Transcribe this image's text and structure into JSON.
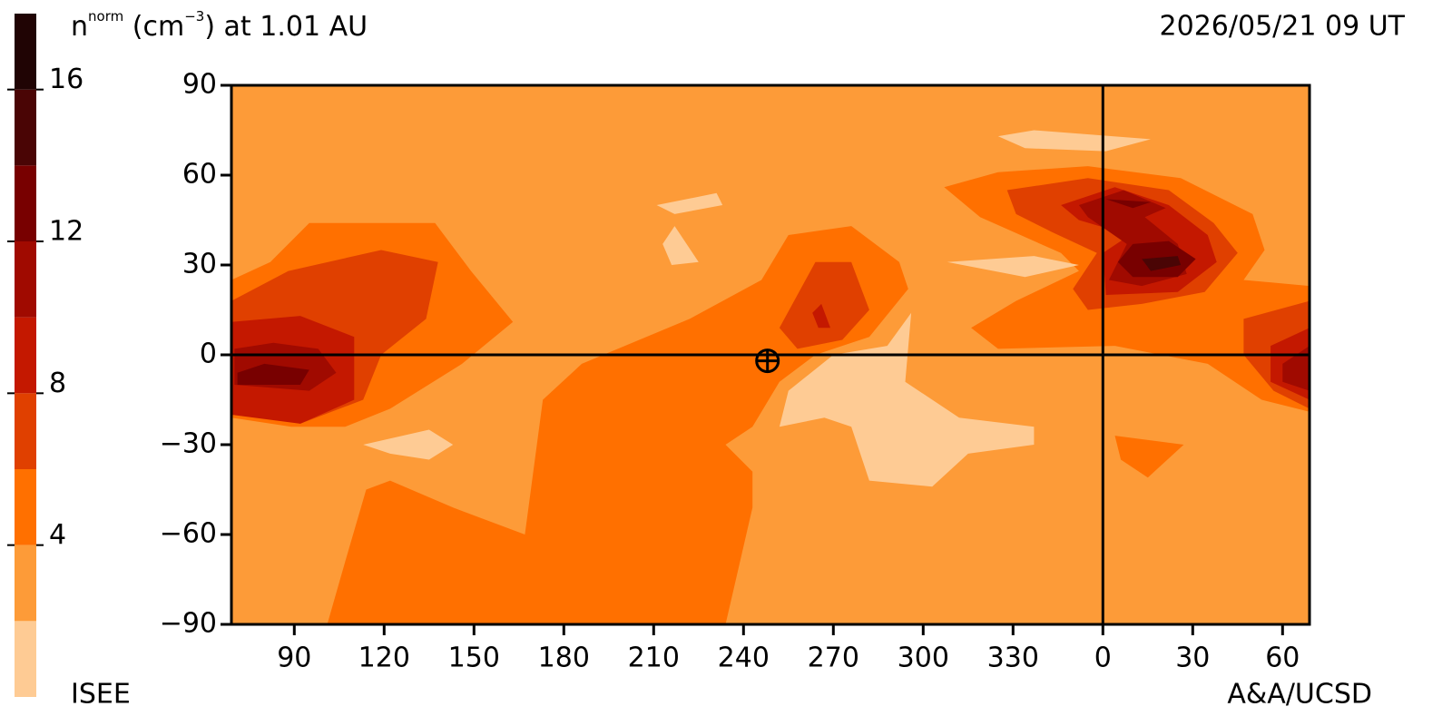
{
  "chart_data": {
    "type": "contour",
    "title_parts": [
      "n",
      "norm",
      " (cm",
      "−3",
      ") at 1.01 AU"
    ],
    "date": "2026/05/21 09 UT",
    "credit_left": "ISEE",
    "credit_right": "A&A/UCSD",
    "xlim": [
      69,
      429
    ],
    "ylim": [
      -90,
      90
    ],
    "xticks": [
      90,
      120,
      150,
      180,
      210,
      240,
      270,
      300,
      330,
      {
        "value": 360,
        "label": "0"
      },
      {
        "value": 390,
        "label": "30"
      },
      {
        "value": 420,
        "label": "60"
      }
    ],
    "yticks": [
      {
        "value": -90,
        "label": "−90"
      },
      {
        "value": -60,
        "label": "−60"
      },
      {
        "value": -30,
        "label": "−30"
      },
      0,
      30,
      60,
      90
    ],
    "ref_lines": {
      "x": 360,
      "y": 0
    },
    "marker": {
      "lon": 248,
      "lat": -2
    },
    "background_level": 2,
    "colorbar": {
      "lim": [
        0,
        18
      ],
      "ticks": [
        4,
        8,
        12,
        16
      ],
      "levels": [
        0,
        2,
        4,
        6,
        8,
        10,
        12,
        14,
        16
      ],
      "colors": [
        "#fecb94",
        "#fd9b38",
        "#ff7000",
        "#e04000",
        "#c41800",
        "#a00a00",
        "#780000",
        "#4a0505",
        "#200404"
      ]
    },
    "regions": [
      {
        "level": 4,
        "points": [
          [
            69,
            25
          ],
          [
            82,
            31
          ],
          [
            95,
            44
          ],
          [
            137,
            44
          ],
          [
            149,
            28
          ],
          [
            163,
            11
          ],
          [
            146,
            -3
          ],
          [
            122,
            -18
          ],
          [
            107,
            -24
          ],
          [
            89,
            -24
          ],
          [
            69,
            -21
          ]
        ]
      },
      {
        "level": 6,
        "points": [
          [
            69,
            18
          ],
          [
            88,
            28
          ],
          [
            119,
            35
          ],
          [
            138,
            31
          ],
          [
            134,
            12
          ],
          [
            119,
            0
          ],
          [
            113,
            -15
          ],
          [
            92,
            -23
          ],
          [
            69,
            -18
          ]
        ]
      },
      {
        "level": 8,
        "points": [
          [
            69,
            11
          ],
          [
            92,
            13
          ],
          [
            110,
            6
          ],
          [
            110,
            -15
          ],
          [
            92,
            -23
          ],
          [
            69,
            -20
          ]
        ]
      },
      {
        "level": 10,
        "points": [
          [
            70,
            2
          ],
          [
            83,
            4
          ],
          [
            98,
            2
          ],
          [
            104,
            -6
          ],
          [
            95,
            -12
          ],
          [
            70,
            -10
          ]
        ]
      },
      {
        "level": 12,
        "points": [
          [
            71,
            -6
          ],
          [
            80,
            -3
          ],
          [
            95,
            -5
          ],
          [
            92,
            -10
          ],
          [
            71,
            -10
          ]
        ]
      },
      {
        "level": 4,
        "points": [
          [
            101,
            -90
          ],
          [
            107,
            -69
          ],
          [
            114,
            -45
          ],
          [
            122,
            -42
          ],
          [
            143,
            -51
          ],
          [
            167,
            -60
          ],
          [
            173,
            -15
          ],
          [
            186,
            -3
          ],
          [
            222,
            12
          ],
          [
            246,
            25
          ],
          [
            255,
            40
          ],
          [
            276,
            43
          ],
          [
            292,
            31
          ],
          [
            295,
            22
          ],
          [
            282,
            6
          ],
          [
            264,
            0
          ],
          [
            252,
            -9
          ],
          [
            243,
            -24
          ],
          [
            234,
            -30
          ],
          [
            243,
            -39
          ],
          [
            243,
            -51
          ],
          [
            234,
            -90
          ]
        ]
      },
      {
        "level": 6,
        "points": [
          [
            252,
            9
          ],
          [
            264,
            31
          ],
          [
            276,
            31
          ],
          [
            282,
            15
          ],
          [
            273,
            5
          ],
          [
            258,
            2
          ]
        ]
      },
      {
        "level": 8,
        "points": [
          [
            263,
            14
          ],
          [
            266,
            17
          ],
          [
            269,
            9
          ],
          [
            265,
            9
          ]
        ]
      },
      {
        "level": 4,
        "points": [
          [
            307,
            56
          ],
          [
            325,
            61
          ],
          [
            355,
            63
          ],
          [
            386,
            59
          ],
          [
            410,
            47
          ],
          [
            414,
            35
          ],
          [
            407,
            25
          ],
          [
            429,
            23
          ],
          [
            429,
            -19
          ],
          [
            413,
            -15
          ],
          [
            395,
            -3
          ],
          [
            364,
            3
          ],
          [
            325,
            2
          ],
          [
            316,
            9
          ],
          [
            331,
            18
          ],
          [
            352,
            28
          ],
          [
            346,
            34
          ],
          [
            319,
            46
          ]
        ]
      },
      {
        "level": 6,
        "points": [
          [
            328,
            55
          ],
          [
            355,
            59
          ],
          [
            382,
            55
          ],
          [
            397,
            44
          ],
          [
            405,
            34
          ],
          [
            394,
            21
          ],
          [
            373,
            17
          ],
          [
            355,
            15
          ],
          [
            350,
            22
          ],
          [
            358,
            34
          ],
          [
            343,
            41
          ],
          [
            331,
            47
          ]
        ]
      },
      {
        "level": 8,
        "points": [
          [
            346,
            50
          ],
          [
            364,
            56
          ],
          [
            382,
            50
          ],
          [
            395,
            40
          ],
          [
            398,
            31
          ],
          [
            385,
            21
          ],
          [
            361,
            20
          ],
          [
            360,
            34
          ],
          [
            369,
            40
          ],
          [
            352,
            45
          ]
        ]
      },
      {
        "level": 10,
        "points": [
          [
            352,
            50
          ],
          [
            367,
            55
          ],
          [
            381,
            49
          ],
          [
            374,
            46
          ],
          [
            385,
            37
          ],
          [
            388,
            27
          ],
          [
            373,
            23
          ],
          [
            362,
            25
          ],
          [
            368,
            37
          ],
          [
            355,
            46
          ]
        ]
      },
      {
        "level": 12,
        "points": [
          [
            361,
            52
          ],
          [
            376,
            51
          ],
          [
            370,
            49
          ]
        ]
      },
      {
        "level": 12,
        "points": [
          [
            370,
            37
          ],
          [
            382,
            38
          ],
          [
            391,
            32
          ],
          [
            385,
            26
          ],
          [
            370,
            26
          ],
          [
            365,
            31
          ]
        ]
      },
      {
        "level": 14,
        "points": [
          [
            373,
            32
          ],
          [
            385,
            33
          ],
          [
            386,
            30
          ],
          [
            376,
            28
          ]
        ]
      },
      {
        "level": 6,
        "points": [
          [
            407,
            12
          ],
          [
            429,
            18
          ],
          [
            429,
            -18
          ],
          [
            417,
            -12
          ],
          [
            407,
            0
          ]
        ]
      },
      {
        "level": 8,
        "points": [
          [
            416,
            3
          ],
          [
            429,
            9
          ],
          [
            429,
            -15
          ],
          [
            416,
            -9
          ]
        ]
      },
      {
        "level": 10,
        "points": [
          [
            420,
            -3
          ],
          [
            429,
            3
          ],
          [
            429,
            -12
          ],
          [
            420,
            -9
          ]
        ]
      },
      {
        "level": 4,
        "points": [
          [
            364,
            -27
          ],
          [
            387,
            -30
          ],
          [
            375,
            -41
          ],
          [
            366,
            -35
          ]
        ]
      },
      {
        "level": 0,
        "points": [
          [
            255,
            -12
          ],
          [
            270,
            0
          ],
          [
            288,
            3
          ],
          [
            296,
            14
          ],
          [
            294,
            -9
          ],
          [
            312,
            -21
          ],
          [
            337,
            -24
          ],
          [
            337,
            -30
          ],
          [
            315,
            -33
          ],
          [
            303,
            -44
          ],
          [
            282,
            -42
          ],
          [
            276,
            -24
          ],
          [
            267,
            -21
          ],
          [
            252,
            -24
          ]
        ]
      },
      {
        "level": 0,
        "points": [
          [
            325,
            73
          ],
          [
            337,
            75
          ],
          [
            376,
            72
          ],
          [
            361,
            68
          ],
          [
            334,
            69
          ]
        ]
      },
      {
        "level": 0,
        "points": [
          [
            211,
            50
          ],
          [
            231,
            54
          ],
          [
            233,
            50
          ],
          [
            217,
            47
          ]
        ]
      },
      {
        "level": 0,
        "points": [
          [
            213,
            37
          ],
          [
            217,
            43
          ],
          [
            225,
            31
          ],
          [
            216,
            30
          ]
        ]
      },
      {
        "level": 0,
        "points": [
          [
            113,
            -30
          ],
          [
            135,
            -25
          ],
          [
            143,
            -30
          ],
          [
            135,
            -35
          ],
          [
            122,
            -33
          ]
        ]
      },
      {
        "level": 0,
        "points": [
          [
            308,
            31
          ],
          [
            337,
            33
          ],
          [
            352,
            30
          ],
          [
            334,
            26
          ]
        ]
      }
    ]
  }
}
